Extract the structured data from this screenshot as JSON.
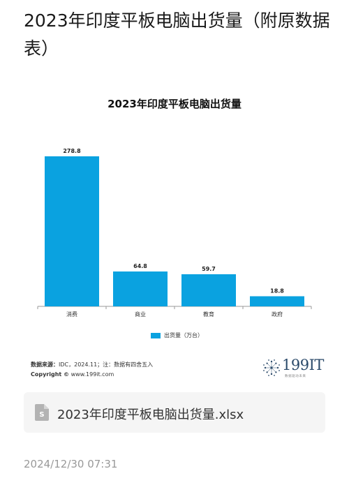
{
  "article": {
    "title": "2023年印度平板电脑出货量（附原数据表）"
  },
  "chart_data": {
    "type": "bar",
    "title": "2023年印度平板电脑出货量",
    "categories": [
      "消费",
      "商业",
      "教育",
      "政府"
    ],
    "series": [
      {
        "name": "出货量（万台）",
        "values": [
          278.8,
          64.8,
          59.7,
          18.8
        ]
      }
    ],
    "data_labels": [
      "278.8",
      "64.8",
      "59.7",
      "18.8"
    ],
    "ylim": [
      0,
      278.8
    ],
    "grid": false,
    "legend_position": "bottom",
    "bar_color": "#0aa2e0"
  },
  "source": {
    "label": "数据来源：",
    "text": "IDC，2024.11；注：数据有四舍五入",
    "copyright_label": "Copyright ©",
    "copyright_text": " www.199it.com"
  },
  "logo": {
    "text": "199IT",
    "subtext": "数据驱动未来"
  },
  "file": {
    "icon": "spreadsheet-file-icon",
    "name": "2023年印度平板电脑出货量.xlsx"
  },
  "timestamp": "2024/12/30 07:31"
}
